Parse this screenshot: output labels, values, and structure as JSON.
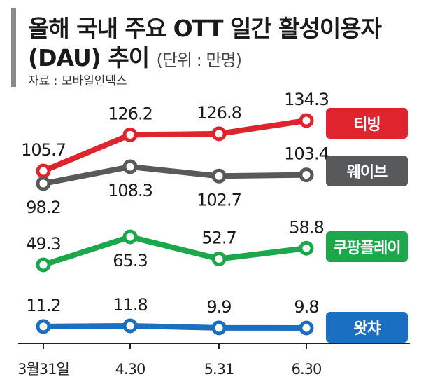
{
  "header": {
    "title_line1": "올해 국내 주요 OTT 일간 활성이용자",
    "title_line2": "(DAU) 추이",
    "unit": "(단위 : 만명)",
    "source": "자료 : 모바일인덱스"
  },
  "chart_data": {
    "type": "line",
    "title": "올해 국내 주요 OTT 일간 활성이용자 (DAU) 추이",
    "unit": "만명",
    "categories": [
      "3월31일",
      "4.30",
      "5.31",
      "6.30"
    ],
    "series": [
      {
        "name": "티빙",
        "color": "#e0242e",
        "values": [
          105.7,
          126.2,
          126.8,
          134.3
        ],
        "labels": [
          "105.7",
          "126.2",
          "126.8",
          "134.3"
        ],
        "label_pos": [
          "above",
          "above",
          "above",
          "above"
        ]
      },
      {
        "name": "웨이브",
        "color": "#58595b",
        "values": [
          98.2,
          108.3,
          102.7,
          103.4
        ],
        "labels": [
          "98.2",
          "108.3",
          "102.7",
          "103.4"
        ],
        "label_pos": [
          "below",
          "below",
          "below",
          "above"
        ]
      },
      {
        "name": "쿠팡플레이",
        "color": "#1aa84b",
        "values": [
          49.3,
          65.3,
          52.7,
          58.8
        ],
        "labels": [
          "49.3",
          "65.3",
          "52.7",
          "58.8"
        ],
        "label_pos": [
          "above",
          "below",
          "above",
          "above"
        ]
      },
      {
        "name": "왓챠",
        "color": "#1a6fc0",
        "values": [
          11.2,
          11.8,
          9.9,
          9.8
        ],
        "labels": [
          "11.2",
          "11.8",
          "9.9",
          "9.8"
        ],
        "label_pos": [
          "above",
          "above",
          "above",
          "above"
        ]
      }
    ]
  }
}
